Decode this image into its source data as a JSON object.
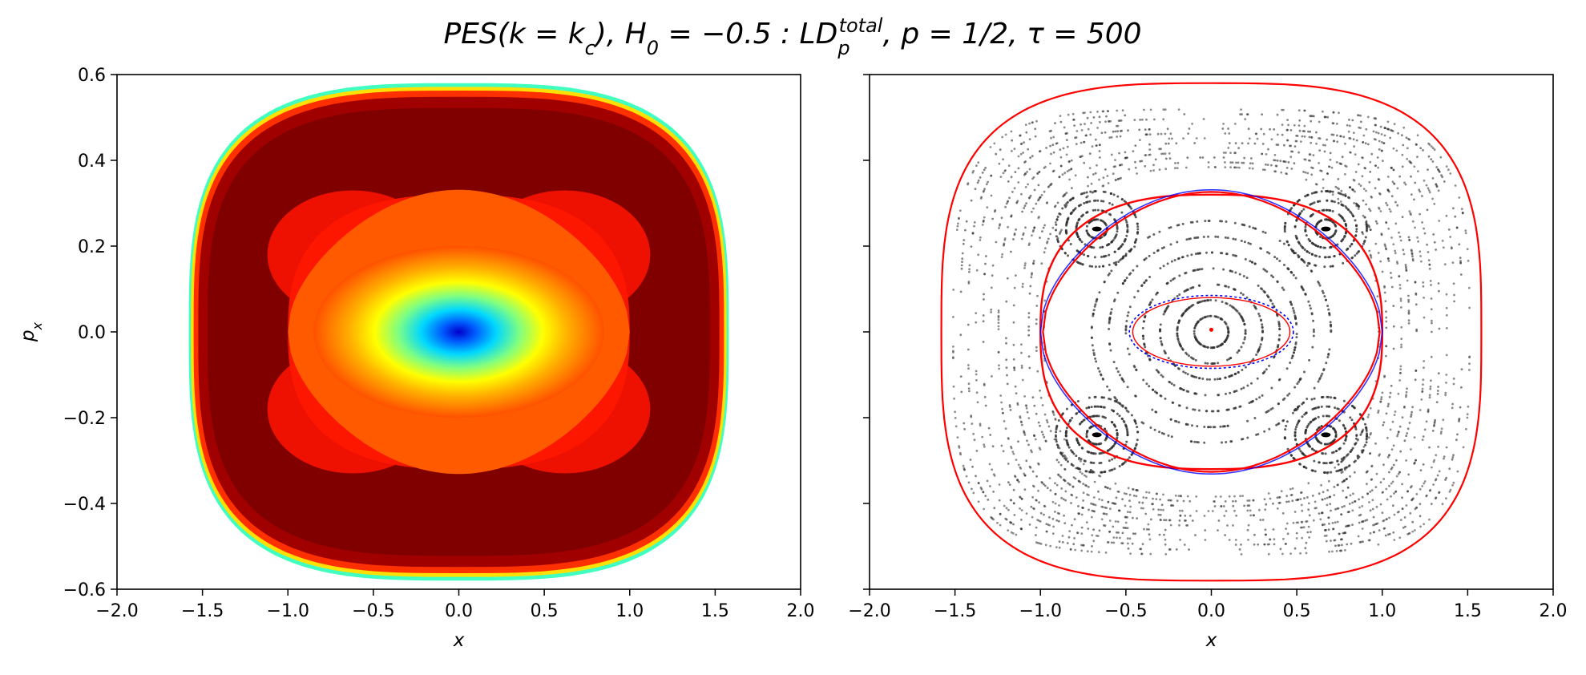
{
  "title": "PES(k = k_c), H_0 = −0.5 : LD_p^total, p = 1/2, τ = 500",
  "title_parts": {
    "pes": "PES(k = k",
    "c": "c",
    "h0": "), H",
    "zero": "0",
    "mid": " = −0.5 : LD",
    "p": "p",
    "total": "total",
    "end": ", p = 1/2, τ = 500"
  },
  "chart_data": [
    {
      "type": "heatmap",
      "name_id": "left",
      "description_colormap": "jet",
      "xlabel": "x",
      "ylabel": "p_x",
      "xlim": [
        -2.0,
        2.0
      ],
      "ylim": [
        -0.6,
        0.6
      ],
      "xticks": [
        "−2.0",
        "−1.5",
        "−1.0",
        "−0.5",
        "0.0",
        "0.5",
        "1.0",
        "1.5",
        "2.0"
      ],
      "yticks": [
        "0.6",
        "0.4",
        "0.2",
        "0.0",
        "−0.2",
        "−0.4",
        "−0.6"
      ],
      "domain_boundary": {
        "x_extent": [
          -1.58,
          1.58
        ],
        "p_extent": [
          -0.58,
          0.58
        ]
      },
      "separatrix_points": [
        [
          0.0,
          0.265
        ],
        [
          0.0,
          -0.265
        ],
        [
          -1.0,
          0.0
        ],
        [
          1.0,
          0.0
        ]
      ],
      "minimum_center": [
        0.0,
        0.0
      ]
    },
    {
      "type": "scatter",
      "name_id": "right",
      "xlabel": "x",
      "xlim": [
        -2.0,
        2.0
      ],
      "ylim": [
        -0.6,
        0.6
      ],
      "xticks": [
        "−2.0",
        "−1.5",
        "−1.0",
        "−0.5",
        "0.0",
        "0.5",
        "1.0",
        "1.5",
        "2.0"
      ],
      "colors": {
        "orbits": "#333333",
        "manifold_red": "#ff0000",
        "manifold_blue": "#0000ff"
      },
      "separatrix_points": [
        [
          0.0,
          0.265
        ],
        [
          0.0,
          -0.265
        ],
        [
          -1.0,
          0.0
        ],
        [
          1.0,
          0.0
        ]
      ],
      "island_centers": [
        [
          -0.67,
          0.24
        ],
        [
          0.67,
          0.24
        ],
        [
          -0.67,
          -0.24
        ],
        [
          0.67,
          -0.24
        ]
      ]
    }
  ]
}
